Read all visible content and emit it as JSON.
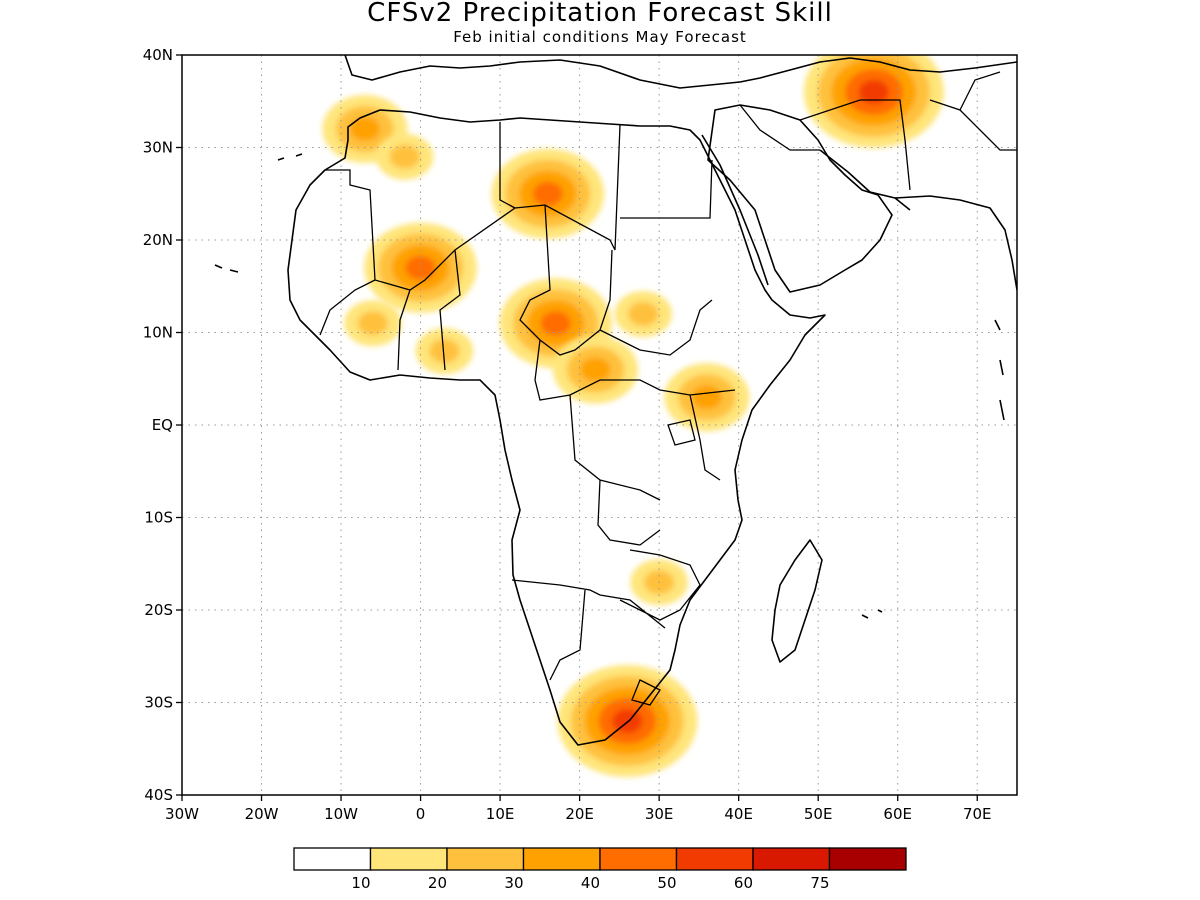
{
  "title": "CFSv2 Precipitation Forecast Skill",
  "subtitle": "Feb initial conditions  May Forecast",
  "map": {
    "lon_range": [
      -30,
      75
    ],
    "lat_range": [
      -40,
      40
    ],
    "grid": "dotted",
    "lat_labels": [
      {
        "value": 40,
        "label": "40N"
      },
      {
        "value": 30,
        "label": "30N"
      },
      {
        "value": 20,
        "label": "20N"
      },
      {
        "value": 10,
        "label": "10N"
      },
      {
        "value": 0,
        "label": "EQ"
      },
      {
        "value": -10,
        "label": "10S"
      },
      {
        "value": -20,
        "label": "20S"
      },
      {
        "value": -30,
        "label": "30S"
      },
      {
        "value": -40,
        "label": "40S"
      }
    ],
    "lon_labels": [
      {
        "value": -30,
        "label": "30W"
      },
      {
        "value": -20,
        "label": "20W"
      },
      {
        "value": -10,
        "label": "10W"
      },
      {
        "value": 0,
        "label": "0"
      },
      {
        "value": 10,
        "label": "10E"
      },
      {
        "value": 20,
        "label": "20E"
      },
      {
        "value": 30,
        "label": "30E"
      },
      {
        "value": 40,
        "label": "40E"
      },
      {
        "value": 50,
        "label": "50E"
      },
      {
        "value": 60,
        "label": "60E"
      },
      {
        "value": 70,
        "label": "70E"
      }
    ]
  },
  "colorbar": {
    "colors": [
      "#ffffff",
      "#ffe57a",
      "#ffc13d",
      "#ffa100",
      "#ff6c00",
      "#f23b00",
      "#d91800",
      "#a80000"
    ],
    "labels": [
      "10",
      "20",
      "30",
      "40",
      "50",
      "60",
      "75"
    ]
  },
  "skill_regions": [
    {
      "lon": 0,
      "lat": 17,
      "level": 4
    },
    {
      "lon": 17,
      "lat": 11,
      "level": 4
    },
    {
      "lon": 16,
      "lat": 25,
      "level": 4
    },
    {
      "lon": 57,
      "lat": 36,
      "level": 5
    },
    {
      "lon": 26,
      "lat": -32,
      "level": 5
    },
    {
      "lon": 36,
      "lat": 3,
      "level": 3
    },
    {
      "lon": -7,
      "lat": 32,
      "level": 3
    },
    {
      "lon": 22,
      "lat": 6,
      "level": 3
    },
    {
      "lon": 28,
      "lat": 12,
      "level": 2
    },
    {
      "lon": 30,
      "lat": -17,
      "level": 2
    },
    {
      "lon": -2,
      "lat": 29,
      "level": 2
    },
    {
      "lon": -6,
      "lat": 11,
      "level": 2
    },
    {
      "lon": 3,
      "lat": 8,
      "level": 2
    }
  ]
}
